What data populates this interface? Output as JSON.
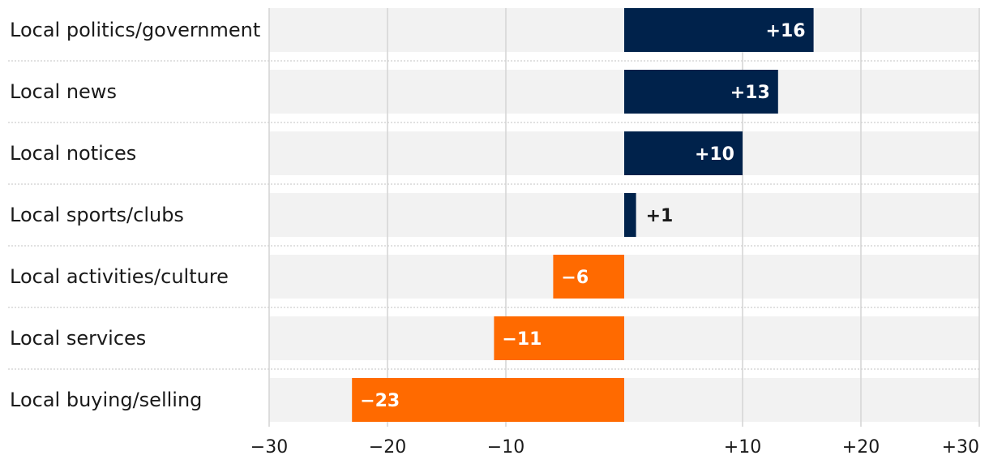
{
  "chart_data": {
    "type": "bar",
    "orientation": "horizontal",
    "categories": [
      "Local politics/government",
      "Local news",
      "Local notices",
      "Local sports/clubs",
      "Local activities/culture",
      "Local services",
      "Local buying/selling"
    ],
    "values": [
      16,
      13,
      10,
      1,
      -6,
      -11,
      -23
    ],
    "value_labels": [
      "+16",
      "+13",
      "+10",
      "+1",
      "−6",
      "−11",
      "−23"
    ],
    "xlim": [
      -30,
      30
    ],
    "xticks": [
      -30,
      -20,
      -10,
      10,
      20,
      30
    ],
    "xtick_labels": [
      "−30",
      "−20",
      "−10",
      "+10",
      "+20",
      "+30"
    ],
    "grid": true,
    "colors": {
      "positive": "#00224b",
      "negative": "#ff6a00",
      "row_background": "#f2f2f2",
      "gridline": "#d4d4d4",
      "separator": "#cfcfcf"
    }
  }
}
